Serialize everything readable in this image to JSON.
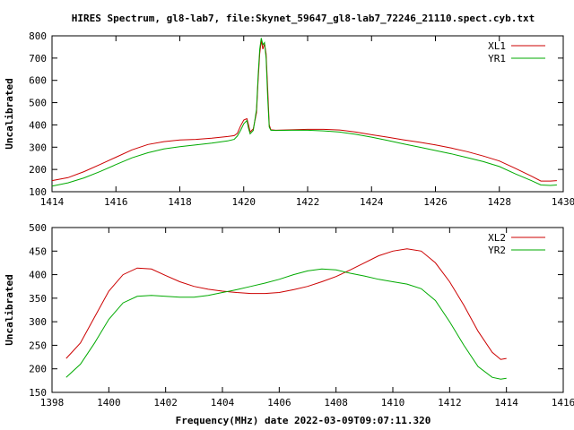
{
  "title": "HIRES Spectrum, gl8-lab7, file:Skynet_59647_gl8-lab7_72246_21110.spect.cyb.txt",
  "xlabel": "Frequency(MHz) date 2022-03-09T09:07:11.320",
  "colors": {
    "red": "#cc0000",
    "green": "#00aa00",
    "frame": "#000000"
  },
  "chart_data": [
    {
      "type": "line",
      "ylabel": "Uncalibrated",
      "xlim": [
        1414,
        1430
      ],
      "ylim": [
        100,
        800
      ],
      "x_ticks": [
        1414,
        1416,
        1418,
        1420,
        1422,
        1424,
        1426,
        1428,
        1430
      ],
      "y_ticks": [
        100,
        200,
        300,
        400,
        500,
        600,
        700,
        800
      ],
      "legend_position": "top-right",
      "series": [
        {
          "name": "XL1",
          "color": "#cc0000",
          "points": [
            [
              1414.0,
              150
            ],
            [
              1414.5,
              163
            ],
            [
              1415.0,
              190
            ],
            [
              1415.5,
              222
            ],
            [
              1416.0,
              255
            ],
            [
              1416.5,
              288
            ],
            [
              1417.0,
              312
            ],
            [
              1417.5,
              325
            ],
            [
              1418.0,
              332
            ],
            [
              1418.5,
              335
            ],
            [
              1419.0,
              340
            ],
            [
              1419.5,
              348
            ],
            [
              1419.7,
              352
            ],
            [
              1419.8,
              362
            ],
            [
              1419.9,
              395
            ],
            [
              1420.0,
              422
            ],
            [
              1420.1,
              428
            ],
            [
              1420.15,
              400
            ],
            [
              1420.2,
              368
            ],
            [
              1420.3,
              382
            ],
            [
              1420.4,
              455
            ],
            [
              1420.45,
              600
            ],
            [
              1420.5,
              720
            ],
            [
              1420.55,
              780
            ],
            [
              1420.6,
              740
            ],
            [
              1420.65,
              765
            ],
            [
              1420.7,
              720
            ],
            [
              1420.75,
              560
            ],
            [
              1420.8,
              400
            ],
            [
              1420.85,
              378
            ],
            [
              1421.0,
              376
            ],
            [
              1421.5,
              378
            ],
            [
              1422.0,
              380
            ],
            [
              1422.5,
              380
            ],
            [
              1423.0,
              377
            ],
            [
              1423.5,
              368
            ],
            [
              1424.0,
              356
            ],
            [
              1424.5,
              345
            ],
            [
              1425.0,
              333
            ],
            [
              1425.5,
              322
            ],
            [
              1426.0,
              310
            ],
            [
              1426.5,
              296
            ],
            [
              1427.0,
              280
            ],
            [
              1427.5,
              260
            ],
            [
              1428.0,
              238
            ],
            [
              1428.5,
              205
            ],
            [
              1429.0,
              170
            ],
            [
              1429.3,
              148
            ],
            [
              1429.6,
              148
            ],
            [
              1429.8,
              150
            ]
          ]
        },
        {
          "name": "YR1",
          "color": "#00aa00",
          "points": [
            [
              1414.0,
              125
            ],
            [
              1414.5,
              140
            ],
            [
              1415.0,
              162
            ],
            [
              1415.5,
              190
            ],
            [
              1416.0,
              222
            ],
            [
              1416.5,
              252
            ],
            [
              1417.0,
              275
            ],
            [
              1417.5,
              292
            ],
            [
              1418.0,
              302
            ],
            [
              1418.5,
              310
            ],
            [
              1419.0,
              318
            ],
            [
              1419.5,
              328
            ],
            [
              1419.7,
              335
            ],
            [
              1419.8,
              350
            ],
            [
              1419.9,
              375
            ],
            [
              1420.0,
              405
            ],
            [
              1420.1,
              420
            ],
            [
              1420.15,
              385
            ],
            [
              1420.2,
              360
            ],
            [
              1420.3,
              375
            ],
            [
              1420.4,
              470
            ],
            [
              1420.45,
              620
            ],
            [
              1420.5,
              740
            ],
            [
              1420.55,
              790
            ],
            [
              1420.6,
              760
            ],
            [
              1420.65,
              770
            ],
            [
              1420.7,
              700
            ],
            [
              1420.75,
              520
            ],
            [
              1420.8,
              390
            ],
            [
              1420.85,
              376
            ],
            [
              1421.0,
              375
            ],
            [
              1421.5,
              376
            ],
            [
              1422.0,
              376
            ],
            [
              1422.5,
              373
            ],
            [
              1423.0,
              368
            ],
            [
              1423.5,
              358
            ],
            [
              1424.0,
              345
            ],
            [
              1424.5,
              330
            ],
            [
              1425.0,
              315
            ],
            [
              1425.5,
              300
            ],
            [
              1426.0,
              285
            ],
            [
              1426.5,
              270
            ],
            [
              1427.0,
              253
            ],
            [
              1427.5,
              235
            ],
            [
              1428.0,
              213
            ],
            [
              1428.5,
              180
            ],
            [
              1429.0,
              150
            ],
            [
              1429.3,
              130
            ],
            [
              1429.6,
              128
            ],
            [
              1429.8,
              130
            ]
          ]
        }
      ]
    },
    {
      "type": "line",
      "ylabel": "Uncalibrated",
      "xlim": [
        1398,
        1416
      ],
      "ylim": [
        150,
        500
      ],
      "x_ticks": [
        1398,
        1400,
        1402,
        1404,
        1406,
        1408,
        1410,
        1412,
        1414,
        1416
      ],
      "y_ticks": [
        150,
        200,
        250,
        300,
        350,
        400,
        450,
        500
      ],
      "legend_position": "top-right",
      "series": [
        {
          "name": "XL2",
          "color": "#cc0000",
          "points": [
            [
              1398.5,
              222
            ],
            [
              1399.0,
              255
            ],
            [
              1399.5,
              310
            ],
            [
              1400.0,
              365
            ],
            [
              1400.5,
              400
            ],
            [
              1401.0,
              414
            ],
            [
              1401.5,
              412
            ],
            [
              1402.0,
              398
            ],
            [
              1402.5,
              385
            ],
            [
              1403.0,
              375
            ],
            [
              1403.5,
              369
            ],
            [
              1404.0,
              365
            ],
            [
              1404.5,
              362
            ],
            [
              1405.0,
              360
            ],
            [
              1405.5,
              360
            ],
            [
              1406.0,
              362
            ],
            [
              1406.5,
              368
            ],
            [
              1407.0,
              375
            ],
            [
              1407.5,
              385
            ],
            [
              1408.0,
              396
            ],
            [
              1408.5,
              410
            ],
            [
              1409.0,
              425
            ],
            [
              1409.5,
              440
            ],
            [
              1410.0,
              450
            ],
            [
              1410.5,
              455
            ],
            [
              1411.0,
              450
            ],
            [
              1411.5,
              425
            ],
            [
              1412.0,
              385
            ],
            [
              1412.5,
              335
            ],
            [
              1413.0,
              280
            ],
            [
              1413.5,
              235
            ],
            [
              1413.8,
              220
            ],
            [
              1414.0,
              222
            ]
          ]
        },
        {
          "name": "YR2",
          "color": "#00aa00",
          "points": [
            [
              1398.5,
              182
            ],
            [
              1399.0,
              210
            ],
            [
              1399.5,
              255
            ],
            [
              1400.0,
              305
            ],
            [
              1400.5,
              340
            ],
            [
              1401.0,
              354
            ],
            [
              1401.5,
              356
            ],
            [
              1402.0,
              354
            ],
            [
              1402.5,
              352
            ],
            [
              1403.0,
              352
            ],
            [
              1403.5,
              356
            ],
            [
              1404.0,
              362
            ],
            [
              1404.5,
              368
            ],
            [
              1405.0,
              375
            ],
            [
              1405.5,
              382
            ],
            [
              1406.0,
              390
            ],
            [
              1406.5,
              400
            ],
            [
              1407.0,
              408
            ],
            [
              1407.5,
              412
            ],
            [
              1408.0,
              410
            ],
            [
              1408.5,
              403
            ],
            [
              1409.0,
              397
            ],
            [
              1409.5,
              390
            ],
            [
              1410.0,
              385
            ],
            [
              1410.5,
              380
            ],
            [
              1411.0,
              370
            ],
            [
              1411.5,
              345
            ],
            [
              1412.0,
              300
            ],
            [
              1412.5,
              250
            ],
            [
              1413.0,
              205
            ],
            [
              1413.5,
              182
            ],
            [
              1413.8,
              178
            ],
            [
              1414.0,
              180
            ]
          ]
        }
      ]
    }
  ]
}
